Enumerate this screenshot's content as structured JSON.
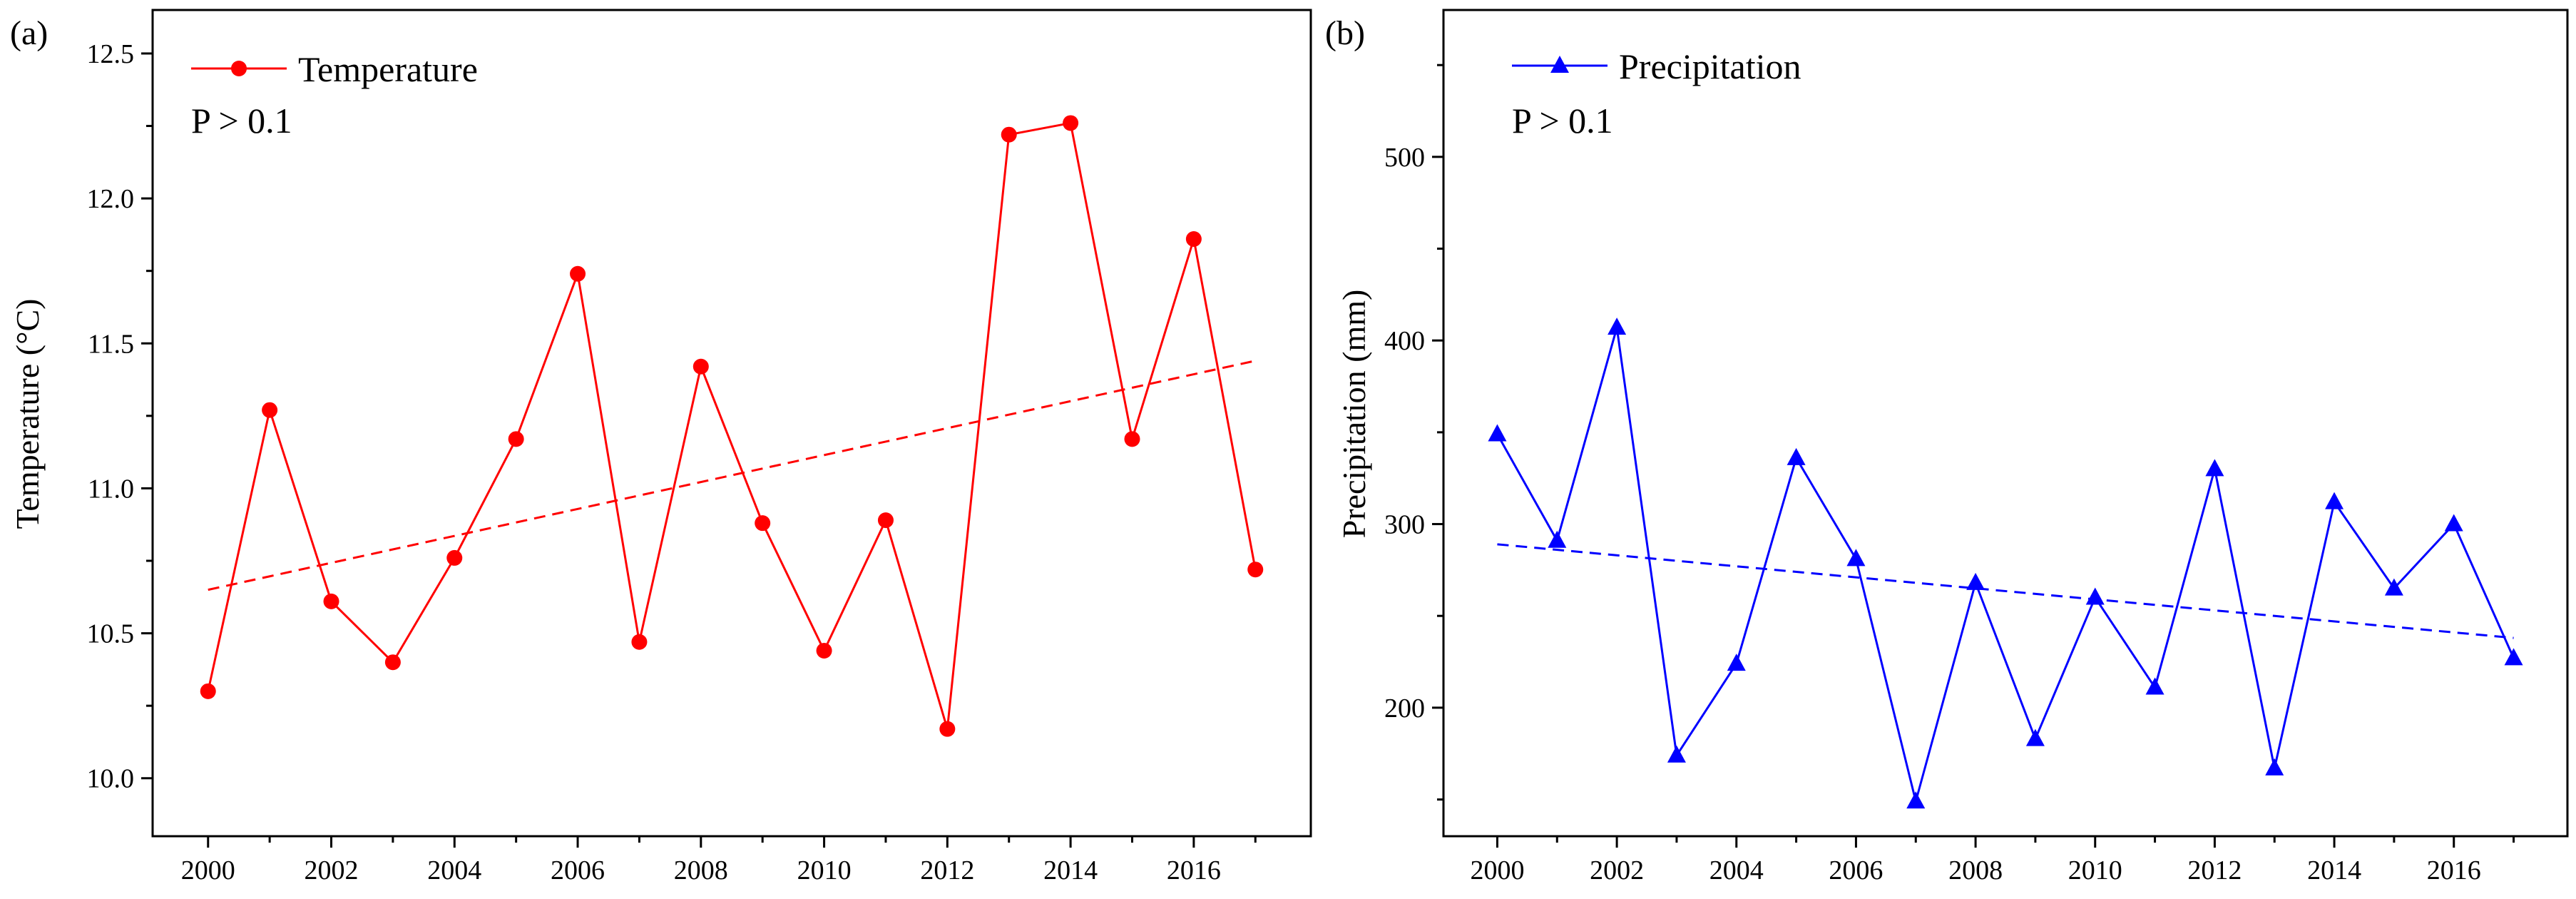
{
  "chart_data": [
    {
      "type": "line",
      "panel_label": "(a)",
      "title": "",
      "xlabel": "",
      "ylabel": "Temperature (°C)",
      "color": "#ff0000",
      "marker": "circle",
      "x": [
        2000,
        2001,
        2002,
        2003,
        2004,
        2005,
        2006,
        2007,
        2008,
        2009,
        2010,
        2011,
        2012,
        2013,
        2014,
        2015,
        2016,
        2017
      ],
      "series": [
        {
          "name": "Temperature",
          "values": [
            10.3,
            11.27,
            10.61,
            10.4,
            10.76,
            11.17,
            11.74,
            10.47,
            11.42,
            10.88,
            10.44,
            10.89,
            10.17,
            12.22,
            12.26,
            11.17,
            11.86,
            10.72
          ]
        }
      ],
      "trend": {
        "from": [
          2000,
          10.65
        ],
        "to": [
          2017,
          11.44
        ],
        "style": "dashed"
      },
      "annotation": "P > 0.1",
      "xlim": [
        1999.1,
        2017.9
      ],
      "ylim": [
        9.8,
        12.65
      ],
      "xticks": [
        2000,
        2002,
        2004,
        2006,
        2008,
        2010,
        2012,
        2014,
        2016
      ],
      "xticklabels": [
        "2000",
        "2002",
        "2004",
        "2006",
        "2008",
        "2010",
        "2012",
        "2014",
        "2016"
      ],
      "yticks": [
        10.0,
        10.5,
        11.0,
        11.5,
        12.0,
        12.5
      ],
      "yticklabels": [
        "10.0",
        "10.5",
        "11.0",
        "11.5",
        "12.0",
        "12.5"
      ],
      "legend": "top-left",
      "grid": false
    },
    {
      "type": "line",
      "panel_label": "(b)",
      "title": "",
      "xlabel": "",
      "ylabel": "Precipitation (mm)",
      "color": "#0000ff",
      "marker": "triangle",
      "x": [
        2000,
        2001,
        2002,
        2003,
        2004,
        2005,
        2006,
        2007,
        2008,
        2009,
        2010,
        2011,
        2012,
        2013,
        2014,
        2015,
        2016,
        2017
      ],
      "series": [
        {
          "name": "Precipitation",
          "values": [
            349,
            291,
            407,
            174,
            224,
            336,
            281,
            149,
            268,
            183,
            260,
            211,
            330,
            167,
            312,
            265,
            300,
            227
          ]
        }
      ],
      "trend": {
        "from": [
          2000,
          289
        ],
        "to": [
          2017,
          238
        ],
        "style": "dashed"
      },
      "annotation": "P > 0.1",
      "xlim": [
        1999.1,
        2017.9
      ],
      "ylim": [
        130,
        580
      ],
      "xticks": [
        2000,
        2002,
        2004,
        2006,
        2008,
        2010,
        2012,
        2014,
        2016
      ],
      "xticklabels": [
        "2000",
        "2002",
        "2004",
        "2006",
        "2008",
        "2010",
        "2012",
        "2014",
        "2016"
      ],
      "yticks": [
        200,
        300,
        400,
        500
      ],
      "yticklabels": [
        "200",
        "300",
        "400",
        "500"
      ],
      "legend": "top-left",
      "grid": false
    }
  ]
}
